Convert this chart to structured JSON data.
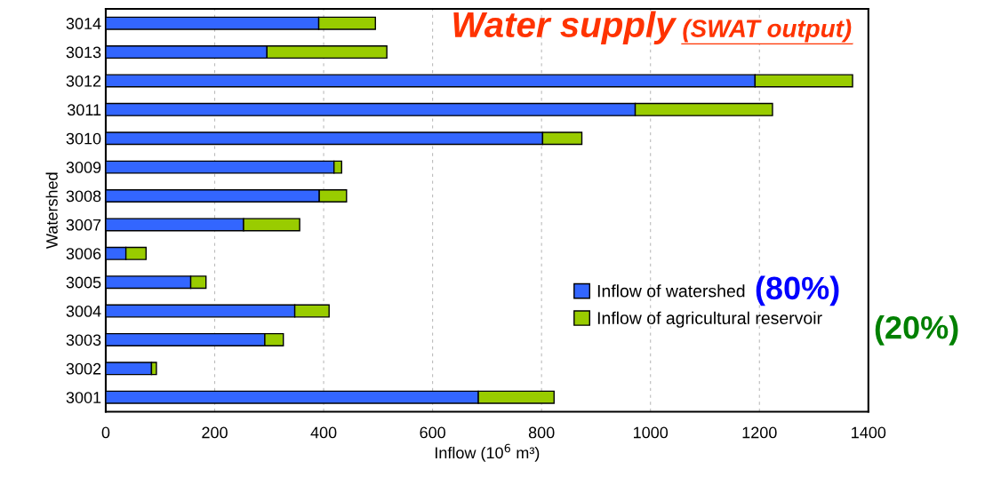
{
  "chart_data": {
    "type": "bar",
    "orientation": "horizontal",
    "stacked": true,
    "title": "Water supply",
    "subtitle": "(SWAT output)",
    "xlabel": "Inflow (10$^{6}$ m³)",
    "ylabel": "Watershed",
    "categories": [
      "3014",
      "3013",
      "3012",
      "3011",
      "3010",
      "3009",
      "3008",
      "3007",
      "3006",
      "3005",
      "3004",
      "3003",
      "3002",
      "3001"
    ],
    "series": [
      {
        "name": "Inflow of watershed",
        "color": "#3366ff",
        "values": [
          391,
          296,
          1192,
          972,
          802,
          419,
          392,
          253,
          37,
          156,
          347,
          292,
          84,
          684
        ]
      },
      {
        "name": "Inflow of agricultural reservoir",
        "color": "#99cc00",
        "values": [
          104,
          220,
          179,
          252,
          72,
          14,
          50,
          103,
          37,
          28,
          63,
          34,
          9,
          139
        ]
      }
    ],
    "annotations": [
      "(80%)",
      "(20%)"
    ],
    "xlim": [
      0,
      1400
    ],
    "xticks": [
      0,
      200,
      400,
      600,
      800,
      1000,
      1200,
      1400
    ],
    "grid": "x",
    "legend": "lower right"
  }
}
